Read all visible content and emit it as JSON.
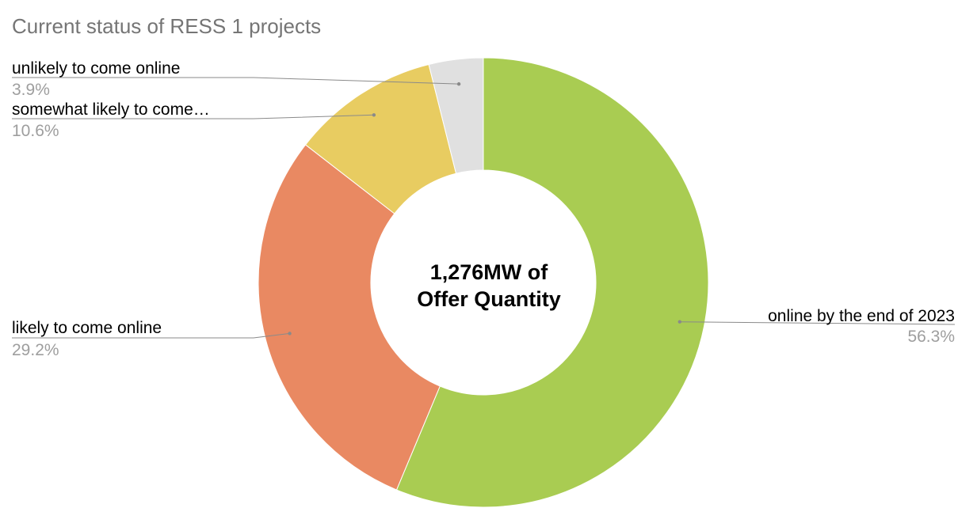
{
  "chart_data": {
    "type": "pie",
    "variant": "donut",
    "title": "Current status of RESS 1 projects",
    "center_label": [
      "1,276MW of",
      "Offer Quantity"
    ],
    "slices": [
      {
        "label": "online by the end of 2023",
        "value": 56.3,
        "display": "56.3%",
        "color": "#a9cc52"
      },
      {
        "label": "likely to come online",
        "value": 29.2,
        "display": "29.2%",
        "color": "#e98962"
      },
      {
        "label": "somewhat likely to come…",
        "value": 10.6,
        "display": "10.6%",
        "color": "#e8cc61"
      },
      {
        "label": "unlikely to come online",
        "value": 3.9,
        "display": "3.9%",
        "color": "#e0e0e0"
      }
    ],
    "start_angle_deg": 0,
    "direction": "clockwise"
  }
}
